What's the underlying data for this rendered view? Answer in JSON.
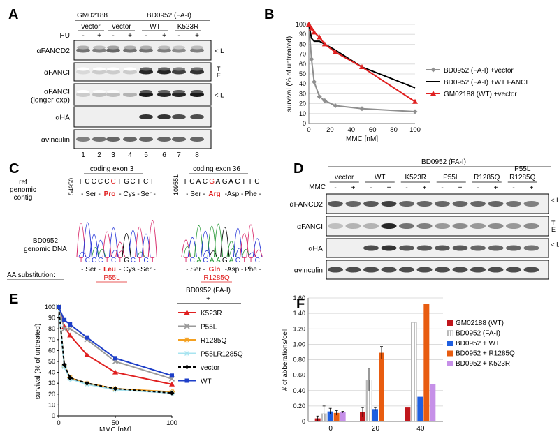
{
  "panels": {
    "a": {
      "letter": "A",
      "cell_lines": [
        "GM02188",
        "BD0952 (FA-I)"
      ],
      "construct_labels": [
        "vector",
        "vector",
        "WT",
        "K523R"
      ],
      "hu_label": "HU",
      "treatment_signs": [
        "-",
        "+",
        "-",
        "+",
        "-",
        "+",
        "-",
        "+"
      ],
      "lane_numbers": [
        "1",
        "2",
        "3",
        "4",
        "5",
        "6",
        "7",
        "8"
      ],
      "blots": [
        {
          "label": "αFANCD2",
          "label2": "",
          "marks": [
            "< L"
          ]
        },
        {
          "label": "αFANCI",
          "label2": "",
          "marks": [
            "T",
            "E"
          ]
        },
        {
          "label": "αFANCI",
          "label2": "(longer exp)",
          "marks": [
            "< L"
          ]
        },
        {
          "label": "αHA",
          "label2": "",
          "marks": []
        },
        {
          "label": "αvinculin",
          "label2": "",
          "marks": []
        }
      ]
    },
    "b": {
      "letter": "B",
      "legend": [
        "BD0952 (FA-I) +vector",
        "BD0952 (FA-I) +WT FANCI",
        "GM02188 (WT) +vector"
      ]
    },
    "c": {
      "letter": "C",
      "ref_label": [
        "ref",
        "genomic",
        "contig"
      ],
      "exons": [
        {
          "pos": "54950",
          "title": "coding exon 3",
          "seq": [
            "T",
            "C",
            "C",
            "C",
            "C",
            "C",
            "T",
            "G",
            "C",
            "T",
            "C",
            "T"
          ],
          "highlight": 5,
          "aa": [
            "- Ser -",
            "Pro",
            "- Cys -",
            "Ser -"
          ],
          "mut_seq": [
            "T",
            "C",
            "C",
            "C",
            "T",
            "C",
            "T",
            "G",
            "C",
            "T",
            "C",
            "T"
          ],
          "mut_aa": [
            "- Ser -",
            "Leu",
            "- Cys -",
            "Ser -"
          ],
          "substitution": "P55L"
        },
        {
          "pos": "109551",
          "title": "coding exon 36",
          "seq": [
            "T",
            "C",
            "A",
            "C",
            "G",
            "A",
            "G",
            "A",
            "C",
            "T",
            "T",
            "C"
          ],
          "highlight": 4,
          "aa": [
            "- Ser -",
            "Arg",
            "-Asp -",
            "Phe -"
          ],
          "mut_seq": [
            "T",
            "C",
            "A",
            "C",
            "A",
            "A",
            "G",
            "A",
            "C",
            "T",
            "T",
            "C"
          ],
          "mut_aa": [
            "- Ser -",
            "Gln",
            "-Asp -",
            "Phe -"
          ],
          "substitution": "R1285Q"
        }
      ],
      "sample_label": [
        "BD0952",
        "genomic DNA"
      ],
      "aa_sub_label": "AA substitution:"
    },
    "d": {
      "letter": "D",
      "cell_line": "BD0952 (FA-I)",
      "constructs": [
        "vector",
        "WT",
        "K523R",
        "P55L",
        "R1285Q",
        "P55L\nR1285Q"
      ],
      "construct_top": [
        "",
        "",
        "",
        "",
        "",
        "P55L"
      ],
      "construct_bottom": [
        "vector",
        "WT",
        "K523R",
        "P55L",
        "R1285Q",
        "R1285Q"
      ],
      "treatment_label": "MMC",
      "treatment_signs": [
        "-",
        "+",
        "-",
        "+",
        "-",
        "+",
        "-",
        "+",
        "-",
        "+",
        "-",
        "+"
      ],
      "blots": [
        {
          "label": "αFANCD2",
          "marks": [
            "< L"
          ]
        },
        {
          "label": "αFANCI",
          "marks": [
            "T",
            "E"
          ]
        },
        {
          "label": "αHA",
          "marks": [
            "< L"
          ]
        },
        {
          "label": "αvinculin",
          "marks": []
        }
      ]
    },
    "e": {
      "letter": "E",
      "legend_title": [
        "BD0952 (FA-I)",
        "+"
      ]
    },
    "f": {
      "letter": "F"
    }
  },
  "chart_data": [
    {
      "id": "B",
      "type": "line",
      "xlabel": "MMC [nM]",
      "ylabel": "survival  (% of untreated)",
      "xlim": [
        0,
        100
      ],
      "ylim": [
        0,
        100
      ],
      "xticks": [
        0,
        20,
        40,
        60,
        80,
        100
      ],
      "yticks": [
        0,
        10,
        20,
        30,
        40,
        50,
        60,
        70,
        80,
        90,
        100
      ],
      "grid": "horizontal",
      "legend_position": "right",
      "series": [
        {
          "name": "BD0952 (FA-I) +vector",
          "color": "#8f8f8f",
          "marker": "diamond",
          "x": [
            0,
            2.5,
            5,
            10,
            15,
            25,
            50,
            100
          ],
          "y": [
            100,
            65,
            42,
            27,
            23,
            18,
            15,
            12
          ]
        },
        {
          "name": "BD0952 (FA-I) +WT FANCI",
          "color": "#000000",
          "marker": "none",
          "x": [
            0,
            2.5,
            5,
            10,
            15,
            25,
            50,
            100
          ],
          "y": [
            100,
            86,
            83,
            83,
            80,
            74,
            57,
            36
          ]
        },
        {
          "name": "GM02188 (WT) +vector",
          "color": "#e02020",
          "marker": "triangle",
          "x": [
            0,
            2.5,
            5,
            10,
            15,
            25,
            50,
            100
          ],
          "y": [
            100,
            96,
            92,
            87,
            80,
            72,
            57,
            22
          ]
        }
      ]
    },
    {
      "id": "E",
      "type": "line",
      "xlabel": "MMC [nM]",
      "ylabel": "survival  (% of untreated)",
      "xlim": [
        0,
        100
      ],
      "ylim": [
        0,
        100
      ],
      "xticks": [
        0,
        50,
        100
      ],
      "yticks": [
        0,
        10,
        20,
        30,
        40,
        50,
        60,
        70,
        80,
        90,
        100
      ],
      "grid": "none",
      "legend_position": "right",
      "series": [
        {
          "name": "K523R",
          "color": "#e02020",
          "marker": "triangle",
          "dash": false,
          "x": [
            0,
            5,
            10,
            25,
            50,
            100
          ],
          "y": [
            100,
            82,
            74,
            56,
            40,
            29
          ]
        },
        {
          "name": "P55L",
          "color": "#9a9a9a",
          "marker": "x",
          "dash": false,
          "x": [
            0,
            5,
            10,
            25,
            50,
            100
          ],
          "y": [
            100,
            80,
            80,
            70,
            50,
            34
          ]
        },
        {
          "name": "R1285Q",
          "color": "#f4a020",
          "marker": "star",
          "dash": false,
          "x": [
            0,
            5,
            10,
            25,
            50,
            100
          ],
          "y": [
            100,
            46,
            35,
            30,
            25,
            22
          ]
        },
        {
          "name": "P55LR1285Q",
          "color": "#a8e4f0",
          "marker": "star",
          "dash": false,
          "x": [
            0,
            5,
            10,
            25,
            50,
            100
          ],
          "y": [
            100,
            45,
            34,
            29,
            24,
            21
          ]
        },
        {
          "name": "vector",
          "color": "#000000",
          "marker": "diamond",
          "dash": true,
          "x": [
            0,
            5,
            10,
            25,
            50,
            100
          ],
          "y": [
            100,
            47,
            35,
            30,
            25,
            21
          ]
        },
        {
          "name": "WT",
          "color": "#1e3fc8",
          "marker": "square",
          "dash": false,
          "x": [
            0,
            5,
            10,
            25,
            50,
            100
          ],
          "y": [
            100,
            88,
            84,
            72,
            53,
            37
          ]
        }
      ]
    },
    {
      "id": "F",
      "type": "bar",
      "xlabel": "MMC [ng/ml]",
      "ylabel": "# of abberations/cell",
      "categories": [
        "0",
        "20",
        "40"
      ],
      "ylim": [
        0,
        1.6
      ],
      "yticks": [
        0,
        0.2,
        0.4,
        0.6,
        0.8,
        1.0,
        1.2,
        1.4,
        1.6
      ],
      "ytick_labels": [
        "0",
        "0.20",
        "0.40",
        "0.60",
        "0.80",
        "1.00",
        "1.20",
        "1.40",
        "1.60"
      ],
      "grid": "horizontal",
      "legend_position": "right",
      "series": [
        {
          "name": "GM02188 (WT)",
          "color": "#c0161c",
          "values": [
            0.04,
            0.12,
            0.18
          ],
          "err": [
            0.03,
            0.06,
            0
          ]
        },
        {
          "name": "BD0952 (FA-I)",
          "color": "#e8e8e8",
          "stripe": true,
          "values": [
            0.1,
            0.54,
            1.28
          ],
          "err": [
            0.1,
            0.15,
            0
          ]
        },
        {
          "name": "BD0952 + WT",
          "color": "#1f5fe0",
          "values": [
            0.13,
            0.16,
            0.32
          ],
          "err": [
            0.04,
            0.02,
            0
          ]
        },
        {
          "name": "BD0952 + R1285Q",
          "color": "#e85c10",
          "values": [
            0.11,
            0.89,
            1.52
          ],
          "err": [
            0.03,
            0.08,
            0
          ]
        },
        {
          "name": "BD0952 + K523R",
          "color": "#c690e8",
          "values": [
            0.12,
            0,
            0.48
          ],
          "err": [
            0.01,
            0,
            0
          ]
        }
      ]
    }
  ]
}
